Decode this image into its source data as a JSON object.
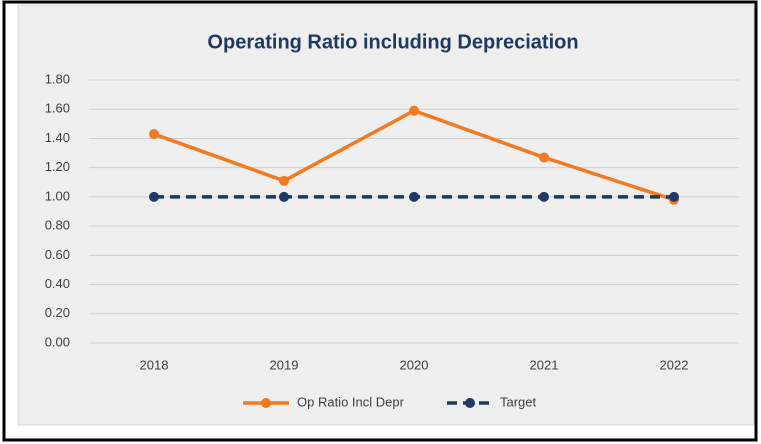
{
  "chart_data": {
    "type": "line",
    "title": "Operating Ratio including Depreciation",
    "categories": [
      "2018",
      "2019",
      "2020",
      "2021",
      "2022"
    ],
    "series": [
      {
        "name": "Op Ratio Incl Depr",
        "color": "#f47a20",
        "values": [
          1.43,
          1.11,
          1.59,
          1.27,
          0.98
        ],
        "dashed": false
      },
      {
        "name": "Target",
        "color": "#1f3864",
        "values": [
          1.0,
          1.0,
          1.0,
          1.0,
          1.0
        ],
        "dashed": true
      }
    ],
    "ylim": [
      0,
      1.8
    ],
    "yticks": [
      {
        "value": 0,
        "label": "0.00"
      },
      {
        "value": 0.2,
        "label": "0.20"
      },
      {
        "value": 0.4,
        "label": "0.40"
      },
      {
        "value": 0.6,
        "label": "0.60"
      },
      {
        "value": 0.8,
        "label": "0.80"
      },
      {
        "value": 1.0,
        "label": "1.00"
      },
      {
        "value": 1.2,
        "label": "1.20"
      },
      {
        "value": 1.4,
        "label": "1.40"
      },
      {
        "value": 1.6,
        "label": "1.60"
      },
      {
        "value": 1.8,
        "label": "1.80"
      }
    ],
    "grid": true,
    "legend": "bottom"
  }
}
